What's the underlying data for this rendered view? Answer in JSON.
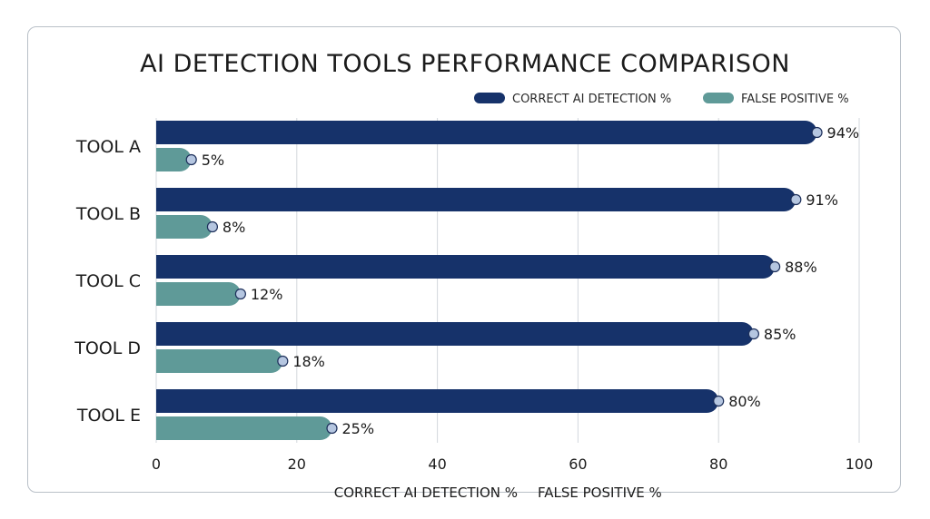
{
  "chart_data": {
    "type": "bar",
    "orientation": "horizontal",
    "title": "AI DETECTION TOOLS PERFORMANCE COMPARISON",
    "categories": [
      "TOOL A",
      "TOOL B",
      "TOOL C",
      "TOOL D",
      "TOOL E"
    ],
    "series": [
      {
        "name": "CORRECT AI DETECTION %",
        "values": [
          94,
          91,
          88,
          85,
          80
        ],
        "labels": [
          "94%",
          "91%",
          "88%",
          "85%",
          "80%"
        ],
        "color": "#16326a"
      },
      {
        "name": "FALSE POSITIVE %",
        "values": [
          5,
          8,
          12,
          18,
          25
        ],
        "labels": [
          "5%",
          "8%",
          "12%",
          "18%",
          "25%"
        ],
        "color": "#5f9a98"
      }
    ],
    "xlim": [
      0,
      100
    ],
    "xticks": [
      0,
      20,
      40,
      60,
      80,
      100
    ],
    "xtick_labels": [
      "0",
      "20",
      "40",
      "60",
      "80",
      "100"
    ],
    "xlabel_parts": [
      "CORRECT AI DETECTION %",
      "FALSE POSITIVE %"
    ],
    "grid": "vertical",
    "legend_position": "top-right",
    "marker_color": "#b5c6e0"
  }
}
